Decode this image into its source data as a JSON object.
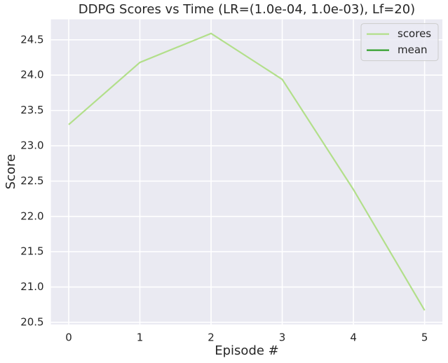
{
  "chart_data": {
    "type": "line",
    "title": "DDPG Scores vs Time (LR=(1.0e-04, 1.0e-03), Lf=20)",
    "x_label": "Episode #",
    "y_label": "Score",
    "x": [
      0,
      1,
      2,
      3,
      4,
      5
    ],
    "series": [
      {
        "name": "scores",
        "color": "#b2df8a",
        "values": [
          23.3,
          24.18,
          24.59,
          23.94,
          22.38,
          20.67
        ]
      },
      {
        "name": "mean",
        "color": "#33a02c",
        "values": [
          null,
          null,
          null,
          null,
          null,
          null
        ]
      }
    ],
    "xlim": [
      -0.25,
      5.25
    ],
    "xticks": [
      0,
      1,
      2,
      3,
      4,
      5
    ],
    "ylim": [
      20.47,
      24.79
    ],
    "yticks": [
      20.5,
      {
        "value": 21,
        "label": "21.0"
      },
      21.5,
      {
        "value": 22,
        "label": "22.0"
      },
      22.5,
      {
        "value": 23,
        "label": "23.0"
      },
      23.5,
      {
        "value": 24,
        "label": "24.0"
      },
      24.5
    ],
    "grid": true,
    "legend": "upper right"
  }
}
